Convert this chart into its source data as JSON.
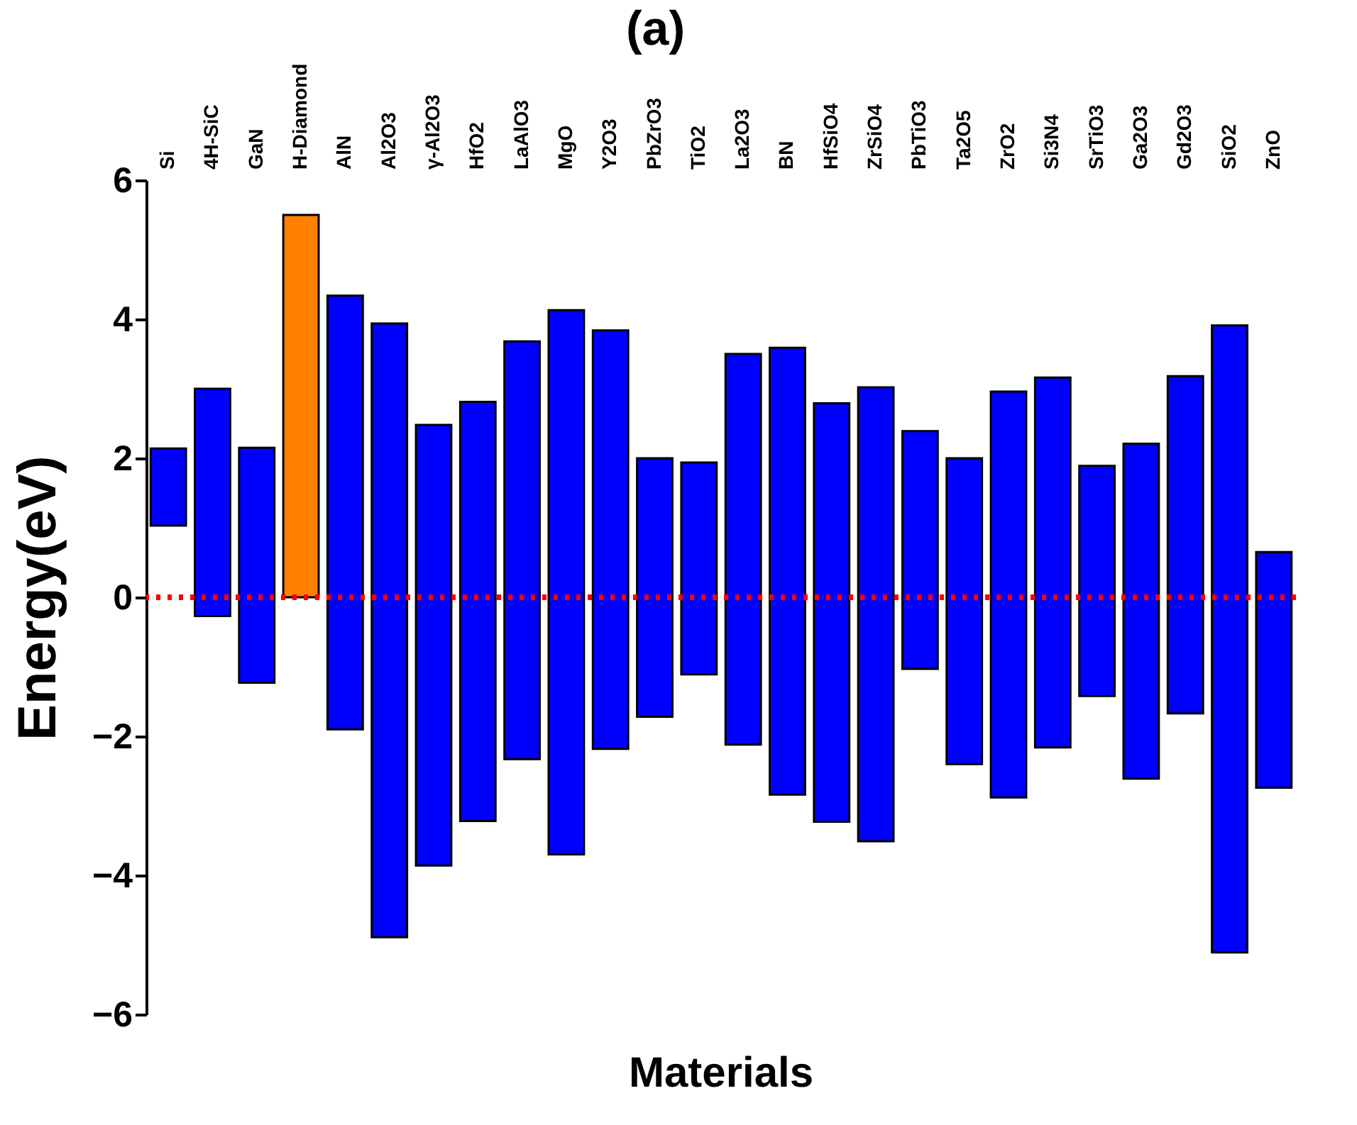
{
  "chart_data": {
    "type": "bar",
    "title": "(a)",
    "xlabel": "Materials",
    "ylabel": "Energy(eV)",
    "categories": [
      "Si",
      "4H-SiC",
      "GaN",
      "H-Diamond",
      "AlN",
      "Al2O3",
      "γ-Al2O3",
      "HfO2",
      "LaAlO3",
      "MgO",
      "Y2O3",
      "PbZrO3",
      "TiO2",
      "La2O3",
      "BN",
      "HfSiO4",
      "ZrSiO4",
      "PbTiO3",
      "Ta2O5",
      "ZrO2",
      "Si3N4",
      "SrTiO3",
      "Ga2O3",
      "Gd2O3",
      "SiO2",
      "ZnO"
    ],
    "base": [
      1.03,
      -0.27,
      -1.23,
      0,
      -1.9,
      -4.89,
      -3.86,
      -3.22,
      -2.33,
      -3.7,
      -2.18,
      -1.72,
      -1.11,
      -2.12,
      -2.84,
      -3.23,
      -3.51,
      -1.03,
      -2.4,
      -2.88,
      -2.16,
      -1.42,
      -2.61,
      -1.67,
      -5.11,
      -2.74
    ],
    "values": [
      1.11,
      3.27,
      3.38,
      5.5,
      6.24,
      8.83,
      6.34,
      6.03,
      6.01,
      7.83,
      6.02,
      3.72,
      3.05,
      5.62,
      6.43,
      6.02,
      6.53,
      3.42,
      4.4,
      5.84,
      5.32,
      3.31,
      4.82,
      4.85,
      9.02,
      3.39
    ],
    "colors": [
      "#0000ff",
      "#0000ff",
      "#0000ff",
      "#ff8000",
      "#0000ff",
      "#0000ff",
      "#0000ff",
      "#0000ff",
      "#0000ff",
      "#0000ff",
      "#0000ff",
      "#0000ff",
      "#0000ff",
      "#0000ff",
      "#0000ff",
      "#0000ff",
      "#0000ff",
      "#0000ff",
      "#0000ff",
      "#0000ff",
      "#0000ff",
      "#0000ff",
      "#0000ff",
      "#0000ff",
      "#0000ff",
      "#0000ff"
    ],
    "ylim": [
      -6,
      6
    ],
    "yticks": [
      -6,
      -4,
      -2,
      0,
      2,
      4,
      6
    ],
    "grid": false,
    "ref_lines": [
      {
        "axis": "y",
        "value": 0,
        "color": "#ff0000",
        "line_style": "dotted"
      }
    ]
  }
}
